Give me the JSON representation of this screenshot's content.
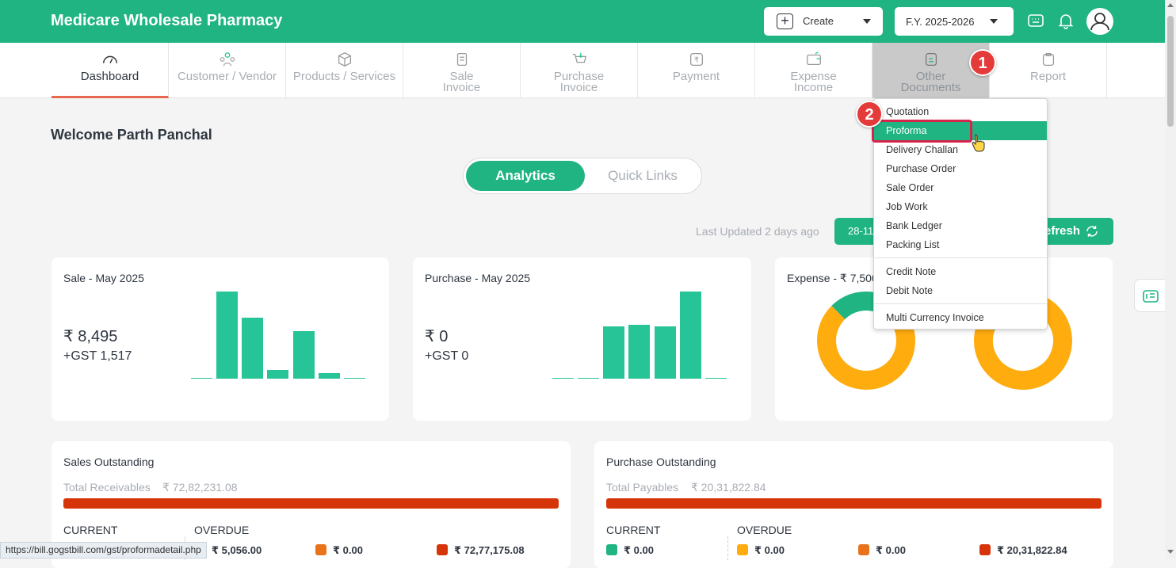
{
  "app": {
    "title": "Medicare Wholesale Pharmacy"
  },
  "header": {
    "create_label": "Create",
    "fy_label": "F.Y. 2025-2026"
  },
  "nav": {
    "tabs": [
      {
        "line1": "Dashboard",
        "line2": ""
      },
      {
        "line1": "Customer / Vendor",
        "line2": ""
      },
      {
        "line1": "Products / Services",
        "line2": ""
      },
      {
        "line1": "Sale",
        "line2": "Invoice"
      },
      {
        "line1": "Purchase",
        "line2": "Invoice"
      },
      {
        "line1": "Payment",
        "line2": ""
      },
      {
        "line1": "Expense",
        "line2": "Income"
      },
      {
        "line1": "Other",
        "line2": "Documents"
      },
      {
        "line1": "Report",
        "line2": ""
      }
    ]
  },
  "annotations": {
    "step1": "1",
    "step2": "2"
  },
  "welcome": "Welcome Parth Panchal",
  "toggle": {
    "active": "Analytics",
    "inactive": "Quick Links"
  },
  "updated": {
    "text": "Last Updated 2 days ago",
    "date_btn": "28-11",
    "refresh_label": "efresh"
  },
  "cards": {
    "sale": {
      "title": "Sale - May 2025",
      "amount": "₹ 8,495",
      "gst": "+GST 1,517"
    },
    "purchase": {
      "title": "Purchase - May 2025",
      "amount": "₹ 0",
      "gst": "+GST 0"
    },
    "expense": {
      "title": "Expense - ₹ 7,500"
    }
  },
  "chart_data": [
    {
      "type": "bar",
      "title": "Sale - May 2025",
      "values": [
        1,
        100,
        70,
        10,
        55,
        6,
        1
      ],
      "colors": [
        "#26c497"
      ]
    },
    {
      "type": "bar",
      "title": "Purchase - May 2025",
      "values": [
        1,
        1,
        60,
        62,
        60,
        100,
        1
      ],
      "colors": [
        "#26c497"
      ]
    },
    {
      "type": "pie",
      "title": "Expense - ₹ 7,500",
      "values": [
        82,
        18
      ],
      "colors": [
        "#ffac0e",
        "#1fb482"
      ]
    },
    {
      "type": "pie",
      "title": "",
      "values": [
        75,
        25
      ],
      "colors": [
        "#ffac0e",
        "#1fb482"
      ]
    }
  ],
  "sales_outstanding": {
    "title": "Sales Outstanding",
    "total_label": "Total Receivables",
    "total_value": "₹ 72,82,231.08",
    "current_label": "CURRENT",
    "overdue_label": "OVERDUE",
    "amounts": [
      "₹ 5,056.00",
      "₹ 0.00",
      "₹ 72,77,175.08"
    ],
    "colors": [
      "#1fb482",
      "#e8731a",
      "#d63509"
    ]
  },
  "purchase_outstanding": {
    "title": "Purchase Outstanding",
    "total_label": "Total Payables",
    "total_value": "₹ 20,31,822.84",
    "current_label": "CURRENT",
    "overdue_label": "OVERDUE",
    "amounts": [
      "₹ 0.00",
      "₹ 0.00",
      "₹ 0.00",
      "₹ 20,31,822.84"
    ],
    "colors": [
      "#1fb482",
      "#ffac0e",
      "#e8731a",
      "#d63509"
    ]
  },
  "menu": {
    "items": [
      "Quotation",
      "Proforma",
      "Delivery Challan",
      "Purchase Order",
      "Sale Order",
      "Job Work",
      "Bank Ledger",
      "Packing List"
    ],
    "items2": [
      "Credit Note",
      "Debit Note"
    ],
    "items3": [
      "Multi Currency Invoice"
    ]
  },
  "status_url": "https://bill.gogstbill.com/gst/proformadetail.php"
}
